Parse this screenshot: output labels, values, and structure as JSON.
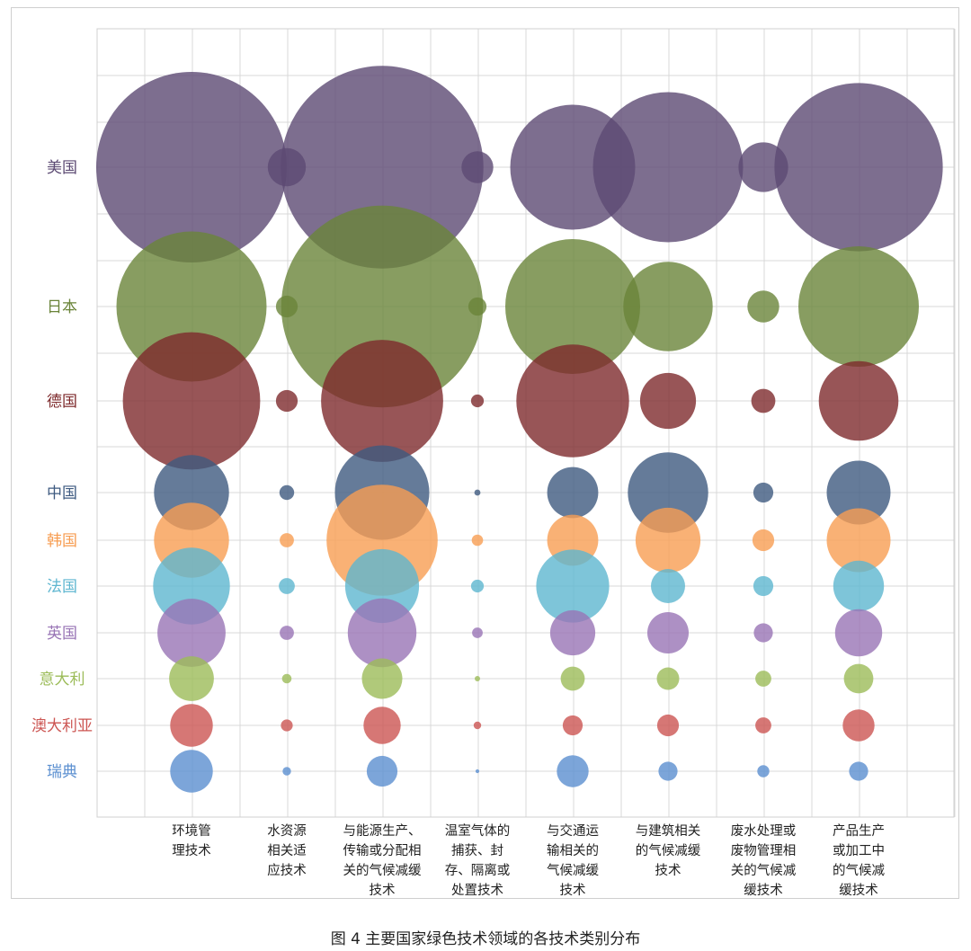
{
  "chart_data": {
    "type": "bubble",
    "title": "",
    "xlabel": "",
    "ylabel": "",
    "grid": true,
    "legend": "none",
    "x_categories": [
      "环境管\n理技术",
      "水资源\n相关适\n应技术",
      "与能源生产、\n传输或分配相\n关的气候减缓\n技术",
      "温室气体的\n捕获、封\n存、隔离或\n处置技术",
      "与交通运\n输相关的\n气候减缓\n技术",
      "与建筑相关\n的气候减缓\n技术",
      "废水处理或\n废物管理相\n关的气候减\n缓技术",
      "产品生产\n或加工中\n的气候减\n缓技术"
    ],
    "series": [
      {
        "name": "美国",
        "color": "#5c4a73",
        "values": [
          100,
          4,
          113,
          2.8,
          43,
          62,
          6.8,
          78
        ]
      },
      {
        "name": "日本",
        "color": "#6a8439",
        "values": [
          62,
          1.3,
          112,
          0.9,
          50,
          22,
          2.8,
          40
        ]
      },
      {
        "name": "德国",
        "color": "#7e2b2d",
        "values": [
          52,
          1.3,
          41,
          0.45,
          35,
          8.6,
          1.6,
          17.5
        ]
      },
      {
        "name": "中国",
        "color": "#3e5a80",
        "values": [
          15.5,
          0.6,
          24.5,
          0.1,
          7.2,
          17.8,
          1.1,
          11.2
        ]
      },
      {
        "name": "韩国",
        "color": "#f79d52",
        "values": [
          15.5,
          0.55,
          34,
          0.35,
          7.2,
          11.6,
          1.3,
          11.2
        ]
      },
      {
        "name": "法国",
        "color": "#5eb6d0",
        "values": [
          16.2,
          0.7,
          15,
          0.45,
          14.7,
          3.2,
          1.1,
          7.1
        ]
      },
      {
        "name": "英国",
        "color": "#9874b5",
        "values": [
          12.8,
          0.55,
          13,
          0.31,
          5.6,
          4.7,
          1.0,
          6.1
        ]
      },
      {
        "name": "意大利",
        "color": "#9cbc59",
        "values": [
          5.5,
          0.25,
          4.5,
          0.08,
          1.6,
          1.4,
          0.7,
          2.4
        ]
      },
      {
        "name": "澳大利亚",
        "color": "#cc5552",
        "values": [
          5.0,
          0.39,
          3.8,
          0.16,
          1.1,
          1.3,
          0.7,
          2.8
        ]
      },
      {
        "name": "瑞典",
        "color": "#5b8fd0",
        "values": [
          5.0,
          0.2,
          2.6,
          0.04,
          2.8,
          1.0,
          0.4,
          1.0
        ]
      }
    ]
  },
  "caption": "图 4 主要国家绿色技术领域的各技术类别分布"
}
